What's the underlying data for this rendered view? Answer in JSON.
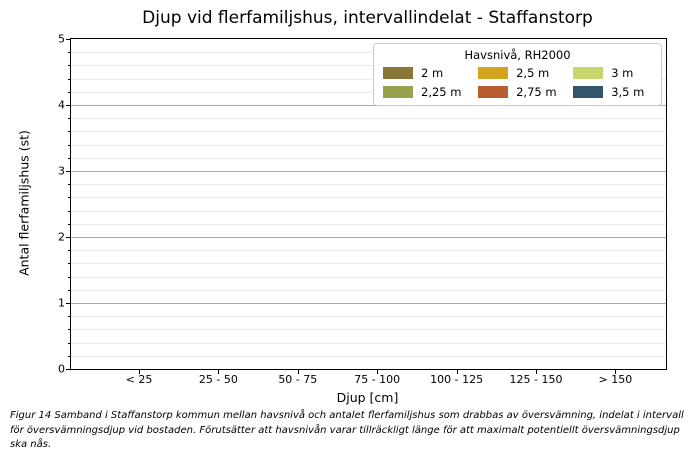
{
  "figure": {
    "caption": "Figur 14 Samband i Staffanstorp kommun mellan havsnivå och antalet flerfamiljshus som drabbas av översvämning, indelat i intervall för översvämningsdjup vid bostaden. Förutsätter att havsnivån varar tillräckligt länge för att maximalt potentiellt översvämningsdjup ska nås."
  },
  "chart_data": {
    "type": "bar",
    "title": "Djup vid flerfamiljshus, intervallindelat - Staffanstorp",
    "xlabel": "Djup [cm]",
    "ylabel": "Antal flerfamiljshus (st)",
    "categories": [
      "< 25",
      "25 - 50",
      "50 - 75",
      "75 - 100",
      "100 - 125",
      "125 - 150",
      "> 150"
    ],
    "series": [
      {
        "name": "2 m",
        "color": "#8a7639",
        "values": [
          0,
          0,
          0,
          0,
          0,
          0,
          0
        ]
      },
      {
        "name": "2,25 m",
        "color": "#99a04f",
        "values": [
          0,
          0,
          0,
          0,
          0,
          0,
          0
        ]
      },
      {
        "name": "2,5 m",
        "color": "#d5a41f",
        "values": [
          0,
          0,
          0,
          0,
          0,
          0,
          0
        ]
      },
      {
        "name": "2,75 m",
        "color": "#b75d31",
        "values": [
          0,
          0,
          0,
          0,
          0,
          0,
          0
        ]
      },
      {
        "name": "3 m",
        "color": "#c9d56e",
        "values": [
          0,
          0,
          0,
          0,
          0,
          0,
          0
        ]
      },
      {
        "name": "3,5 m",
        "color": "#33566b",
        "values": [
          0,
          0,
          0,
          0,
          0,
          0,
          0
        ]
      }
    ],
    "ylim": [
      0,
      5
    ],
    "yticks": [
      0,
      1,
      2,
      3,
      4,
      5
    ],
    "y_minor_step": 0.2,
    "grid": "horizontal major and minor gridlines",
    "legend": {
      "title": "Havsnivå, RH2000",
      "position": "upper right",
      "columns": 3,
      "column_order": [
        [
          "2 m",
          "2,25 m"
        ],
        [
          "2,5 m",
          "2,75 m"
        ],
        [
          "3 m",
          "3,5 m"
        ]
      ]
    }
  }
}
